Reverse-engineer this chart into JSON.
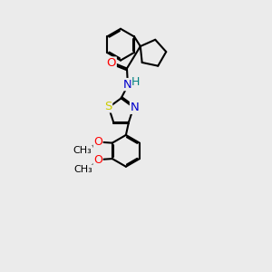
{
  "background_color": "#ebebeb",
  "bond_color": "#000000",
  "atom_colors": {
    "O": "#ff0000",
    "N": "#0000cc",
    "S": "#cccc00",
    "H": "#008080",
    "C": "#000000"
  },
  "figsize": [
    3.0,
    3.0
  ],
  "dpi": 100
}
